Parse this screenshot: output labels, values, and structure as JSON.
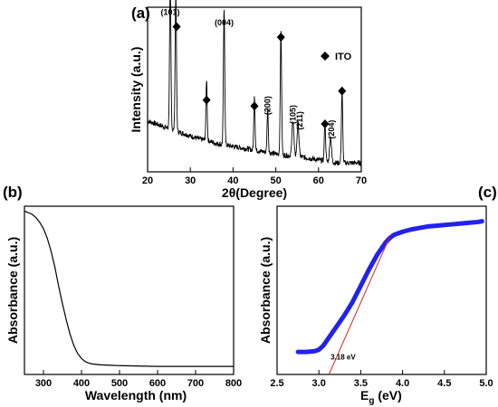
{
  "chart_data": [
    {
      "panel": "(a)",
      "type": "line",
      "xlabel_prefix": "2θ",
      "xlabel_suffix": "(Degree)",
      "ylabel": "Intensity (a.u.)",
      "xlim": [
        20,
        70
      ],
      "xticks": [
        "20",
        "30",
        "40",
        "50",
        "60",
        "70"
      ],
      "yticks_shown": false,
      "grid": false,
      "legend": {
        "marker": "diamond",
        "label": "ITO",
        "position": "top-right"
      },
      "baseline": [
        [
          20,
          0.34
        ],
        [
          22,
          0.32
        ],
        [
          24,
          0.3
        ],
        [
          26,
          0.28
        ],
        [
          28,
          0.26
        ],
        [
          30,
          0.24
        ],
        [
          32,
          0.22
        ],
        [
          34,
          0.21
        ],
        [
          36,
          0.19
        ],
        [
          38,
          0.18
        ],
        [
          40,
          0.17
        ],
        [
          42,
          0.16
        ],
        [
          44,
          0.15
        ],
        [
          46,
          0.14
        ],
        [
          48,
          0.13
        ],
        [
          50,
          0.12
        ],
        [
          52,
          0.11
        ],
        [
          54,
          0.11
        ],
        [
          56,
          0.1
        ],
        [
          58,
          0.09
        ],
        [
          60,
          0.08
        ],
        [
          62,
          0.07
        ],
        [
          64,
          0.06
        ],
        [
          66,
          0.06
        ],
        [
          68,
          0.06
        ],
        [
          70,
          0.06
        ]
      ],
      "peaks": [
        {
          "x": 25.3,
          "y": 0.97,
          "w": 0.22
        },
        {
          "x": 26.6,
          "y": 0.91,
          "w": 0.22
        },
        {
          "x": 33.8,
          "y": 0.41,
          "w": 0.2
        },
        {
          "x": 37.9,
          "y": 0.9,
          "w": 0.22
        },
        {
          "x": 45.0,
          "y": 0.37,
          "w": 0.2
        },
        {
          "x": 48.1,
          "y": 0.3,
          "w": 0.2
        },
        {
          "x": 51.2,
          "y": 0.83,
          "w": 0.22
        },
        {
          "x": 54.0,
          "y": 0.24,
          "w": 0.3
        },
        {
          "x": 55.2,
          "y": 0.22,
          "w": 0.3
        },
        {
          "x": 61.5,
          "y": 0.25,
          "w": 0.22
        },
        {
          "x": 62.8,
          "y": 0.17,
          "w": 0.3
        },
        {
          "x": 65.5,
          "y": 0.47,
          "w": 0.22
        }
      ],
      "hkl_labels": [
        {
          "text": "(101)",
          "x": 25.3,
          "y": 1.05,
          "rotate": false
        },
        {
          "text": "(004)",
          "x": 37.9,
          "y": 0.98,
          "rotate": false
        },
        {
          "text": "(200)",
          "x": 48.1,
          "y": 0.38,
          "rotate": true
        },
        {
          "text": "(105)",
          "x": 54.0,
          "y": 0.32,
          "rotate": true
        },
        {
          "text": "(211)",
          "x": 55.6,
          "y": 0.28,
          "rotate": true
        },
        {
          "text": "(204)",
          "x": 63.0,
          "y": 0.22,
          "rotate": true
        }
      ],
      "ito_markers": [
        {
          "x": 26.8,
          "y": 0.97
        },
        {
          "x": 33.8,
          "y": 0.48
        },
        {
          "x": 45.0,
          "y": 0.44
        },
        {
          "x": 51.2,
          "y": 0.9
        },
        {
          "x": 61.5,
          "y": 0.32
        },
        {
          "x": 65.5,
          "y": 0.54
        }
      ]
    },
    {
      "panel": "(b)",
      "type": "line",
      "xlabel": "Wavelength (nm)",
      "ylabel": "Absorbance (a.u.)",
      "xlim": [
        250,
        800
      ],
      "xticks": [
        "300",
        "400",
        "500",
        "600",
        "700",
        "800"
      ],
      "yticks_shown": false,
      "grid": false,
      "series": [
        {
          "x": [
            250,
            260,
            270,
            280,
            290,
            300,
            310,
            320,
            330,
            340,
            350,
            360,
            370,
            380,
            390,
            400,
            410,
            420,
            430,
            450,
            500,
            600,
            700,
            800
          ],
          "y": [
            0.97,
            0.96,
            0.95,
            0.93,
            0.9,
            0.86,
            0.8,
            0.72,
            0.62,
            0.5,
            0.39,
            0.29,
            0.2,
            0.13,
            0.08,
            0.05,
            0.03,
            0.02,
            0.015,
            0.01,
            0.005,
            0.0,
            0.0,
            0.0
          ]
        }
      ]
    },
    {
      "panel": "(c)",
      "type": "line",
      "xlabel_main": "E",
      "xlabel_sub": "g",
      "xlabel_unit": " (eV)",
      "ylabel": "Absorbance (a.u.)",
      "xlim": [
        2.5,
        5.0
      ],
      "xticks": [
        "2.5",
        "3.0",
        "3.5",
        "4.0",
        "4.5",
        "5.0"
      ],
      "yticks_shown": false,
      "grid": false,
      "series": [
        {
          "color": "#2222ee",
          "x": [
            2.75,
            2.85,
            2.95,
            3.0,
            3.05,
            3.1,
            3.15,
            3.2,
            3.3,
            3.4,
            3.5,
            3.6,
            3.7,
            3.8,
            3.85,
            3.9,
            4.0,
            4.1,
            4.2,
            4.3,
            4.4,
            4.5,
            4.6,
            4.7,
            4.8,
            4.9,
            4.95
          ],
          "y": [
            0.03,
            0.03,
            0.035,
            0.045,
            0.07,
            0.11,
            0.15,
            0.19,
            0.27,
            0.36,
            0.47,
            0.58,
            0.68,
            0.76,
            0.79,
            0.81,
            0.83,
            0.845,
            0.855,
            0.865,
            0.87,
            0.875,
            0.88,
            0.885,
            0.89,
            0.895,
            0.9
          ]
        }
      ],
      "tangent": {
        "color": "#e02020",
        "x1": 3.12,
        "y1": -0.12,
        "x2": 3.85,
        "y2": 0.8
      },
      "annotation": {
        "text": "3.18 eV",
        "x": 3.14,
        "y": -0.02
      }
    }
  ]
}
